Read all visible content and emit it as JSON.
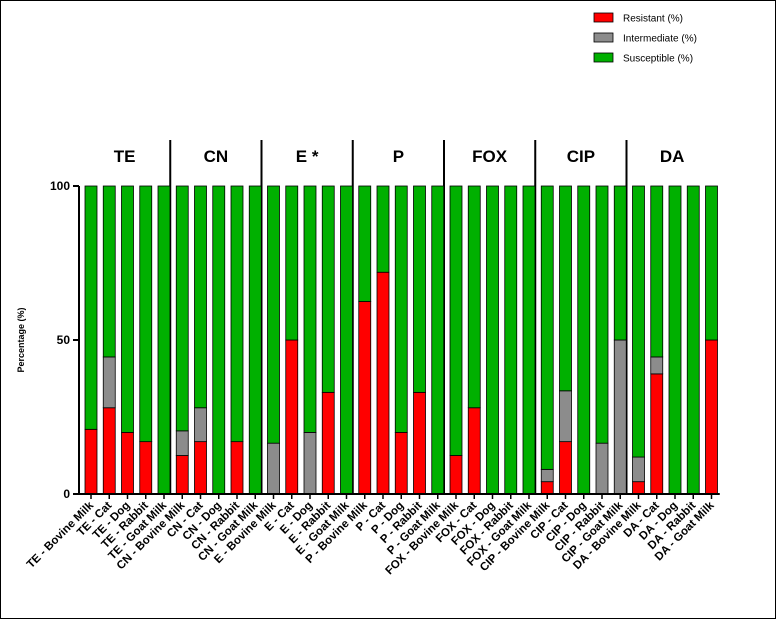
{
  "chart_data": {
    "type": "bar",
    "stacked": true,
    "ylabel": "Percentage (%)",
    "xlabel": "",
    "ylim": [
      0,
      100
    ],
    "yticks": [
      0,
      50,
      100
    ],
    "legend_position": "top-right",
    "groups": [
      "TE",
      "CN",
      "E *",
      "P",
      "FOX",
      "CIP",
      "DA"
    ],
    "categories": [
      "TE - Bovine Milk",
      "TE - Cat",
      "TE - Dog",
      "TE - Rabbit",
      "TE - Goat Milk",
      "CN - Bovine Milk",
      "CN - Cat",
      "CN - Dog",
      "CN - Rabbit",
      "CN - Goat Milk",
      "E - Bovine Milk",
      "E - Cat",
      "E - Dog",
      "E - Rabbit",
      "E - Goat Milk",
      "P - Bovine Milk",
      "P - Cat",
      "P - Dog",
      "P - Rabbit",
      "P - Goat Milk",
      "FOX - Bovine Milk",
      "FOX - Cat",
      "FOX - Dog",
      "FOX - Rabbit",
      "FOX - Goat Milk",
      "CIP - Bovine Milk",
      "CIP - Cat",
      "CIP - Dog",
      "CIP - Rabbit",
      "CIP - Goat Milk",
      "DA - Bovine Milk",
      "DA - Cat",
      "DA - Dog",
      "DA - Rabbit",
      "DA - Goat Milk"
    ],
    "series": [
      {
        "name": "Resistant (%)",
        "color": "#ff0000",
        "values": [
          21,
          28,
          20,
          17,
          0,
          12.5,
          17,
          0,
          17,
          0,
          0,
          50,
          0,
          33,
          0,
          62.5,
          72,
          20,
          33,
          0,
          12.5,
          28,
          0,
          0,
          0,
          4,
          17,
          0,
          0,
          0,
          4,
          39,
          0,
          0,
          50
        ]
      },
      {
        "name": "Intermediate (%)",
        "color": "#8c8c8c",
        "values": [
          0,
          16.5,
          0,
          0,
          0,
          8,
          11,
          0,
          0,
          0,
          16.5,
          0,
          20,
          0,
          0,
          0,
          0,
          0,
          0,
          0,
          0,
          0,
          0,
          0,
          0,
          4,
          16.5,
          0,
          16.5,
          50,
          8,
          5.5,
          0,
          0,
          0
        ]
      },
      {
        "name": "Susceptible (%)",
        "color": "#00b000",
        "values": [
          79,
          55.5,
          80,
          83,
          100,
          79.5,
          72,
          100,
          83,
          100,
          83.5,
          50,
          80,
          67,
          100,
          37.5,
          28,
          80,
          67,
          100,
          87.5,
          72,
          100,
          100,
          100,
          92,
          66.5,
          100,
          83.5,
          50,
          88,
          55.5,
          100,
          100,
          50
        ]
      }
    ]
  }
}
